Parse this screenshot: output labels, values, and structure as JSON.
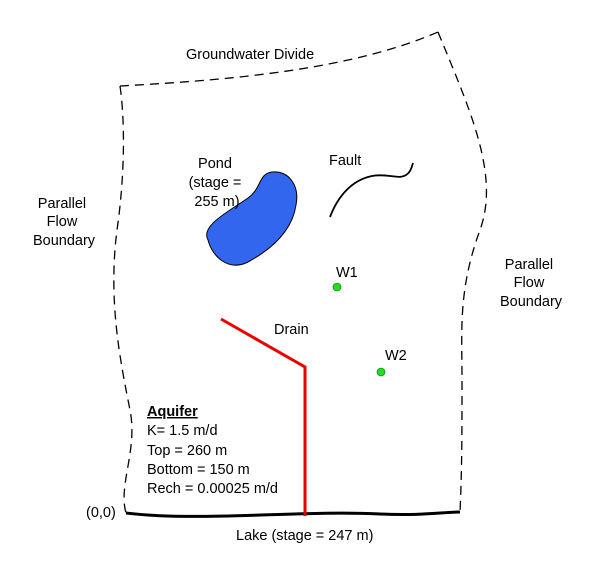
{
  "labels": {
    "top_boundary": "Groundwater Divide",
    "left_boundary": [
      "Parallel",
      "Flow",
      "Boundary"
    ],
    "right_boundary": [
      "Parallel",
      "Flow",
      "Boundary"
    ],
    "pond": [
      "Pond",
      "(stage =",
      "255 m)"
    ],
    "fault": "Fault",
    "drain": "Drain",
    "well_1": "W1",
    "well_2": "W2",
    "origin": "(0,0)",
    "lake": "Lake (stage = 247 m)"
  },
  "aquifer": {
    "title": "Aquifer",
    "props": [
      "K= 1.5 m/d",
      "Top = 260 m",
      "Bottom = 150 m",
      "Rech = 0.00025 m/d"
    ]
  },
  "colors": {
    "pond_fill": "#3366ee",
    "drain": "#ee0000",
    "well_fill": "#22dd22",
    "outline": "#000000"
  }
}
